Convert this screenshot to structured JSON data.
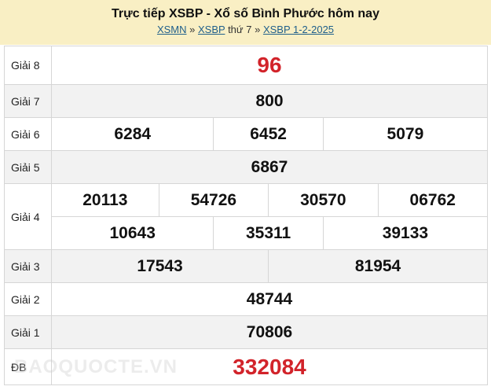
{
  "header": {
    "title": "Trực tiếp XSBP - Xổ số Bình Phước hôm nay",
    "links": [
      "XSMN",
      "XSBP",
      "XSBP 1-2-2025"
    ],
    "sep": "»",
    "day": "thứ 7"
  },
  "results": {
    "g8": {
      "label": "Giải 8",
      "values": [
        "96"
      ]
    },
    "g7": {
      "label": "Giải 7",
      "values": [
        "800"
      ]
    },
    "g6": {
      "label": "Giải 6",
      "values": [
        "6284",
        "6452",
        "5079"
      ]
    },
    "g5": {
      "label": "Giải 5",
      "values": [
        "6867"
      ]
    },
    "g4": {
      "label": "Giải 4",
      "values": [
        "20113",
        "54726",
        "30570",
        "06762",
        "10643",
        "35311",
        "39133"
      ]
    },
    "g3": {
      "label": "Giải 3",
      "values": [
        "17543",
        "81954"
      ]
    },
    "g2": {
      "label": "Giải 2",
      "values": [
        "48744"
      ]
    },
    "g1": {
      "label": "Giải 1",
      "values": [
        "70806"
      ]
    },
    "db": {
      "label": "ĐB",
      "values": [
        "332084"
      ]
    }
  },
  "watermark": "BAOQUOCTE.VN",
  "colors": {
    "header_bg": "#f9efc4",
    "highlight": "#d2232a",
    "link": "#1f5f8b"
  }
}
